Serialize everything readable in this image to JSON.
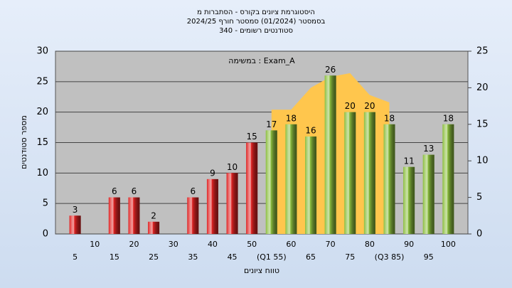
{
  "chart_data": {
    "type": "bar",
    "title": [
      "היסטוגרמת ציונים בקורס - הסתברות מ",
      "בסמסטר  (01/2024)  סמסטר חורף 2024/25",
      "סטודנטים רשומים - 340"
    ],
    "annotation": "במשימה : Exam_A",
    "xlabel": "טווח ציונים",
    "ylabel": "מספר סטודנטים",
    "categories": [
      "5",
      "10",
      "15",
      "20",
      "25",
      "30",
      "35",
      "40",
      "45",
      "50",
      "(Q1 55)",
      "60",
      "65",
      "70",
      "75",
      "80",
      "(Q3 85)",
      "90",
      "95",
      "100"
    ],
    "values": [
      3,
      null,
      6,
      6,
      2,
      null,
      6,
      9,
      10,
      15,
      17,
      18,
      16,
      26,
      20,
      20,
      18,
      11,
      13,
      18
    ],
    "colors": [
      "#e02424",
      "#e02424",
      "#e02424",
      "#e02424",
      "#e02424",
      "#e02424",
      "#e02424",
      "#e02424",
      "#e02424",
      "#e02424",
      "#8cbf3f",
      "#8cbf3f",
      "#8cbf3f",
      "#8cbf3f",
      "#8cbf3f",
      "#8cbf3f",
      "#8cbf3f",
      "#8cbf3f",
      "#8cbf3f",
      "#8cbf3f"
    ],
    "area": {
      "axis": "y2",
      "color": "#ffc64d",
      "values": [
        null,
        null,
        null,
        null,
        null,
        null,
        null,
        null,
        null,
        null,
        17,
        17,
        20,
        21.5,
        22,
        19,
        18,
        null,
        null,
        null
      ]
    },
    "ylim": [
      0,
      30
    ],
    "yticks": [
      0,
      5,
      10,
      15,
      20,
      25,
      30
    ],
    "y2lim": [
      0,
      25
    ],
    "y2ticks": [
      0,
      5,
      10,
      15,
      20,
      25
    ],
    "grid": true
  }
}
